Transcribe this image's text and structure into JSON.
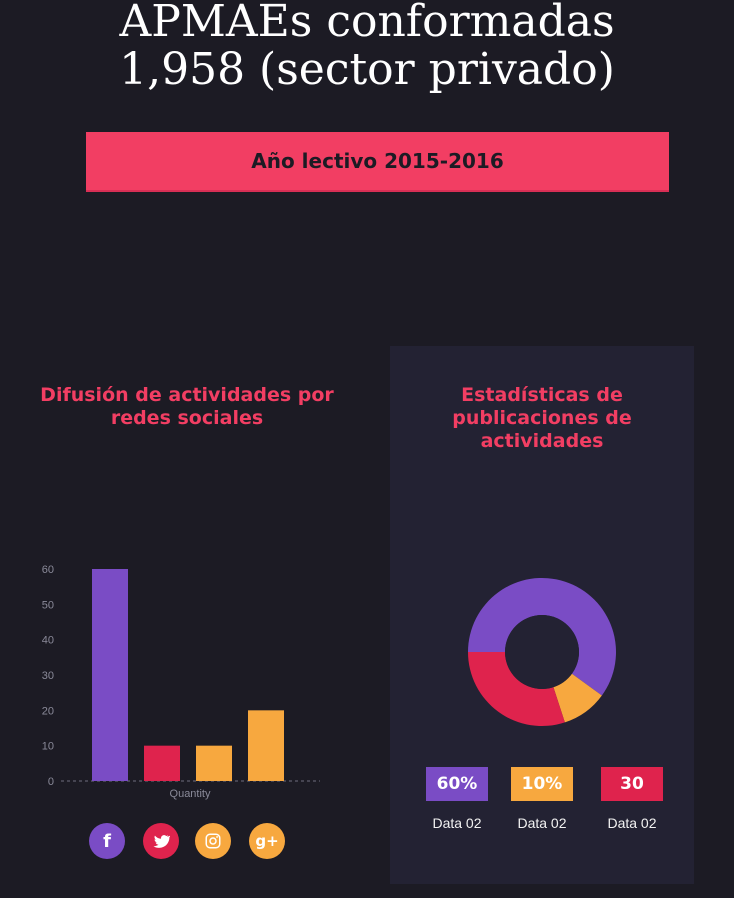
{
  "header": {
    "title_line1": "APMAEs conformadas",
    "title_line2": "1,958 (sector privado)"
  },
  "banner": {
    "label": "Año lectivo 2015-2016"
  },
  "left_panel": {
    "title": "Difusión de actividades por redes sociales",
    "social_icons": [
      {
        "name": "facebook-icon",
        "glyph": "f",
        "color": "#7a4cc5"
      },
      {
        "name": "twitter-icon",
        "glyph": "",
        "color": "#df234d"
      },
      {
        "name": "instagram-icon",
        "glyph": "",
        "color": "#f7a83f"
      },
      {
        "name": "google-plus-icon",
        "glyph": "g+",
        "color": "#f7a83f"
      }
    ]
  },
  "right_panel": {
    "title": "Estadísticas de publicaciones de actividades",
    "legend": [
      {
        "value_label": "60%",
        "label": "Data 02",
        "color": "#7a4cc5"
      },
      {
        "value_label": "10%",
        "label": "Data 02",
        "color": "#f7a83f"
      },
      {
        "value_label": "30",
        "label": "Data 02",
        "color": "#df234d"
      }
    ]
  },
  "chart_data": [
    {
      "type": "bar",
      "title": "Difusión de actividades por redes sociales",
      "categories": [
        "",
        "",
        "",
        ""
      ],
      "values": [
        60,
        10,
        10,
        20
      ],
      "colors": [
        "#7a4cc5",
        "#df234d",
        "#f7a83f",
        "#f7a83f"
      ],
      "xlabel": "Quantity",
      "ylabel": "",
      "ylim": [
        0,
        60
      ],
      "yticks": [
        0,
        10,
        20,
        30,
        40,
        50,
        60
      ],
      "grid": false,
      "legend": "none"
    },
    {
      "type": "pie",
      "title": "Estadísticas de publicaciones de actividades",
      "labels": [
        "Data 02",
        "Data 02",
        "Data 02"
      ],
      "values": [
        60,
        10,
        30
      ],
      "colors": [
        "#7a4cc5",
        "#f7a83f",
        "#df234d"
      ],
      "donut": true,
      "legend": "bottom"
    }
  ]
}
